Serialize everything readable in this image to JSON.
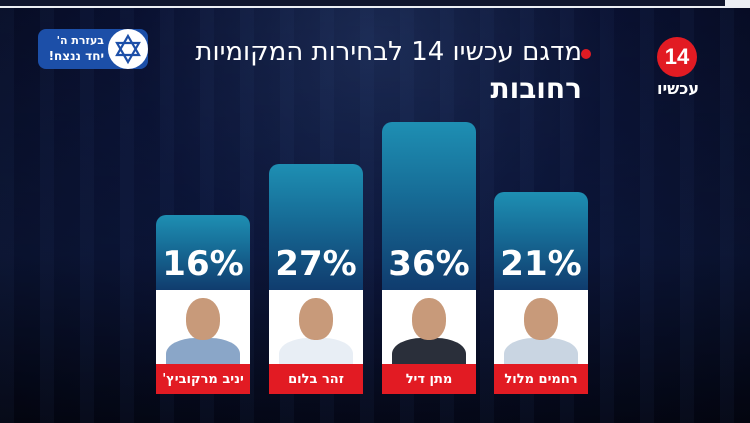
{
  "header": {
    "title": "מדגם עכשיו 14 לבחירות המקומיות",
    "subtitle": "רחובות"
  },
  "logo": {
    "number": "14",
    "text": "עכשיו"
  },
  "badge": {
    "line1": "בעזרת ה'",
    "line2": "יחד ננצח!"
  },
  "colors": {
    "accent_red": "#e21b23",
    "bar_top": "#1e8fb3",
    "bar_bottom": "#103c6e",
    "background": "#0a1130"
  },
  "chart_data": {
    "type": "bar",
    "title": "מדגם עכשיו 14 לבחירות המקומיות",
    "subtitle": "רחובות",
    "categories": [
      "יניב מרקוביץ'",
      "זהר בלום",
      "מתן דיל",
      "רחמים מלול"
    ],
    "values": [
      16,
      27,
      36,
      21
    ],
    "labels": [
      "16%",
      "27%",
      "36%",
      "21%"
    ],
    "unit": "%",
    "ylim": [
      0,
      36
    ],
    "grid": false,
    "legend": "none"
  }
}
